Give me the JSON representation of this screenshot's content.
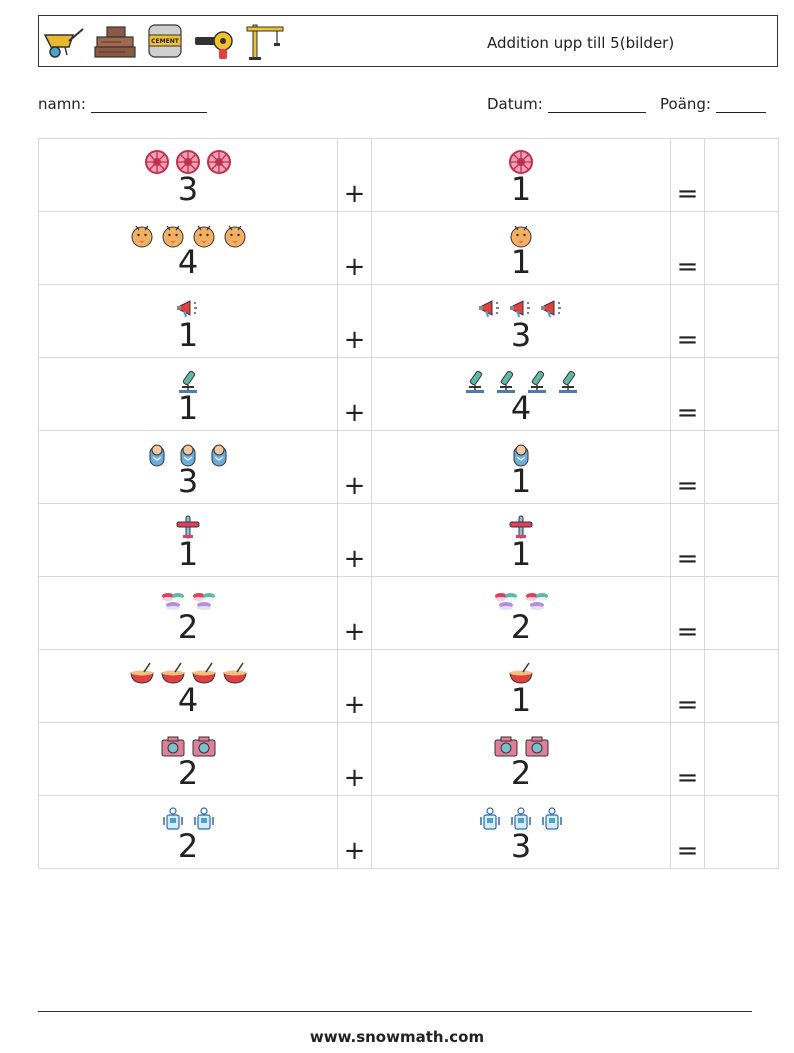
{
  "header": {
    "title": "Addition upp till 5(bilder)",
    "icons": [
      "wheelbarrow-icon",
      "wood-planks-icon",
      "cement-bag-icon",
      "angle-grinder-icon",
      "crane-icon"
    ],
    "cement_label": "CEMENT"
  },
  "info": {
    "name_label": "namn:",
    "date_label": "Datum:",
    "score_label": "Poäng:"
  },
  "operators": {
    "plus": "+",
    "equals": "="
  },
  "rows": [
    {
      "a": 3,
      "b": 1,
      "icon": "wheel"
    },
    {
      "a": 4,
      "b": 1,
      "icon": "face"
    },
    {
      "a": 1,
      "b": 3,
      "icon": "megaphone"
    },
    {
      "a": 1,
      "b": 4,
      "icon": "microscope"
    },
    {
      "a": 3,
      "b": 1,
      "icon": "baby"
    },
    {
      "a": 1,
      "b": 1,
      "icon": "airplane"
    },
    {
      "a": 2,
      "b": 2,
      "icon": "macaron"
    },
    {
      "a": 4,
      "b": 1,
      "icon": "bowl"
    },
    {
      "a": 2,
      "b": 2,
      "icon": "camera"
    },
    {
      "a": 2,
      "b": 3,
      "icon": "robot"
    }
  ],
  "footer": {
    "url": "www.snowmath.com"
  }
}
